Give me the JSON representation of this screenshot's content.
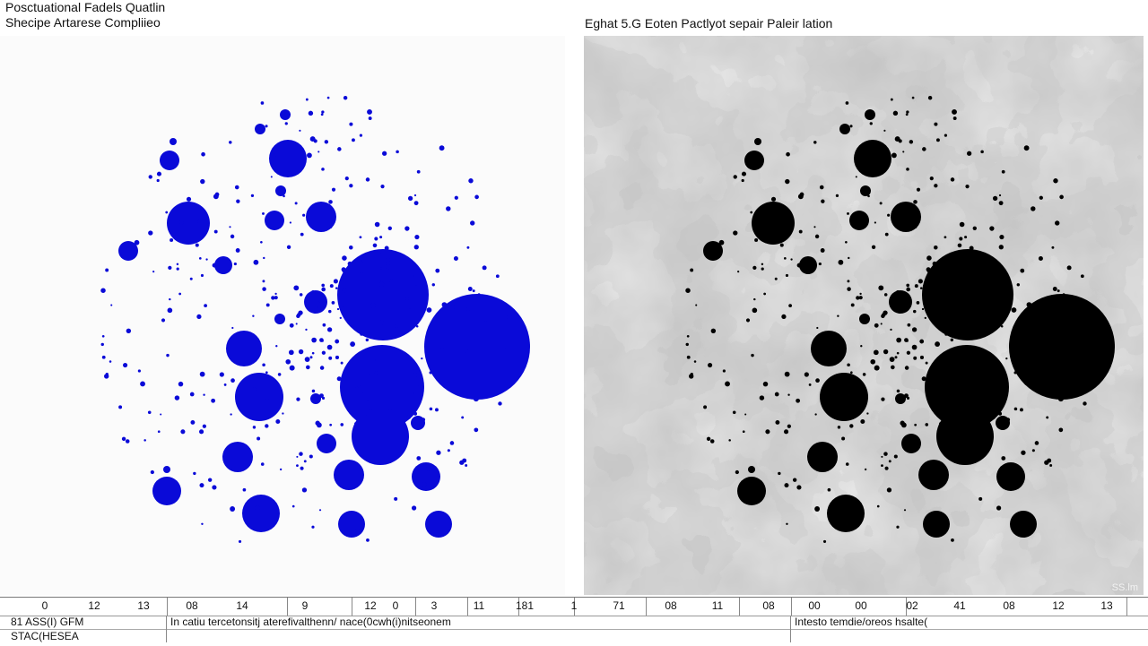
{
  "left_panel": {
    "title_line1": "Posctuational Fadels Quatlin",
    "title_line2": "Shecipe Artarese Compliieo",
    "dot_color": "#0a0ad8"
  },
  "right_panel": {
    "title": "Eghat 5.G Eoten Pactlyot sepair Paleir lation",
    "dot_color": "#000000",
    "corner_label": "SS.lm"
  },
  "ruler": {
    "labels": [
      "0",
      "12",
      "13",
      "08",
      "14",
      "9",
      "12",
      "0",
      "3",
      "11",
      "181",
      "1",
      "71",
      "08",
      "11",
      "08",
      "00",
      "00",
      "02",
      "41",
      "08",
      "12",
      "13"
    ]
  },
  "status": {
    "row1_left": "81 ASS(I) GFM",
    "row1_mid": "In catiu tercetonsitj aterefivalthenn/ nace(0cwh(i)nitseonem",
    "row1_right": "Intesto temdie/oreos hsalte(",
    "row2_left": "STAC(HESEA"
  }
}
